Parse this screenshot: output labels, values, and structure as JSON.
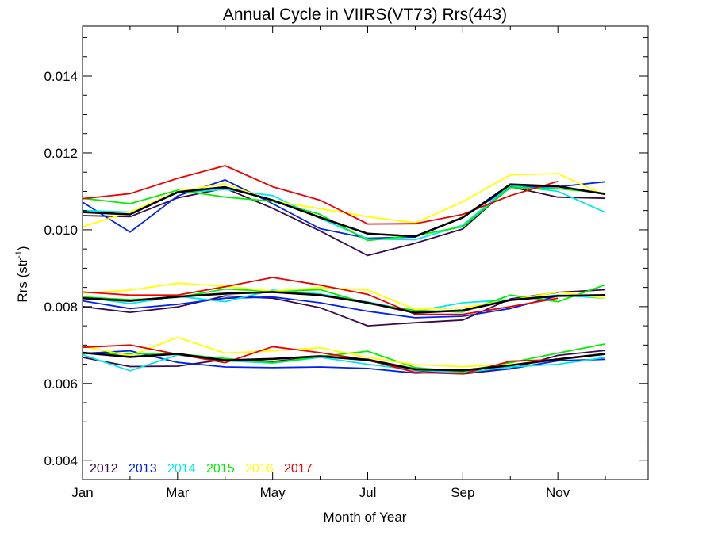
{
  "chart_data": {
    "type": "line",
    "title": "Annual Cycle in VIIRS(VT73) Rrs(443)",
    "xlabel": "Month of Year",
    "ylabel": "Rrs (str",
    "ylabel_sup": "-1",
    "ylabel_close": ")",
    "xlim": [
      1,
      12.9
    ],
    "ylim": [
      0.0035,
      0.0153
    ],
    "x_ticks": [
      {
        "value": 1,
        "label": "Jan"
      },
      {
        "value": 3,
        "label": "Mar"
      },
      {
        "value": 5,
        "label": "May"
      },
      {
        "value": 7,
        "label": "Jul"
      },
      {
        "value": 9,
        "label": "Sep"
      },
      {
        "value": 11,
        "label": "Nov"
      }
    ],
    "y_ticks": [
      {
        "value": 0.004,
        "label": "0.004"
      },
      {
        "value": 0.006,
        "label": "0.006"
      },
      {
        "value": 0.008,
        "label": "0.008"
      },
      {
        "value": 0.01,
        "label": "0.010"
      },
      {
        "value": 0.012,
        "label": "0.012"
      },
      {
        "value": 0.014,
        "label": "0.014"
      }
    ],
    "legend_position": "bottom-left",
    "series": [
      {
        "name": "2012",
        "color": "#3a0a4a",
        "lines": [
          {
            "x": [
              1,
              2,
              3,
              4,
              5,
              6,
              7,
              8,
              9,
              10,
              11,
              12
            ],
            "y": [
              0.01037,
              0.01034,
              0.01083,
              0.01108,
              0.01056,
              0.00997,
              0.00933,
              0.00965,
              0.01002,
              0.01112,
              0.01085,
              0.01082
            ]
          },
          {
            "x": [
              1,
              2,
              3,
              4,
              5,
              6,
              7,
              8,
              9,
              10,
              11,
              12
            ],
            "y": [
              0.008,
              0.00785,
              0.00799,
              0.00828,
              0.00822,
              0.00797,
              0.0075,
              0.00758,
              0.00765,
              0.0082,
              0.00837,
              0.00844
            ]
          },
          {
            "x": [
              1,
              2,
              3,
              4,
              5,
              6,
              7,
              8,
              9,
              10,
              11,
              12
            ],
            "y": [
              0.00668,
              0.00644,
              0.00645,
              0.00663,
              0.00657,
              0.0067,
              0.0066,
              0.00634,
              0.00625,
              0.00638,
              0.00673,
              0.00686
            ]
          }
        ]
      },
      {
        "name": "2013",
        "color": "#0022ee",
        "lines": [
          {
            "x": [
              1,
              2,
              3,
              4,
              5,
              6,
              7,
              8,
              9,
              10,
              11,
              12
            ],
            "y": [
              0.01072,
              0.00994,
              0.01088,
              0.0113,
              0.01068,
              0.01003,
              0.00978,
              0.00981,
              0.01032,
              0.01112,
              0.01112,
              0.01125
            ]
          },
          {
            "x": [
              1,
              2,
              3,
              4,
              5,
              6,
              7,
              8,
              9,
              10,
              11,
              12
            ],
            "y": [
              0.00815,
              0.00795,
              0.00806,
              0.00822,
              0.00825,
              0.0081,
              0.00788,
              0.00771,
              0.00775,
              0.00795,
              0.00828,
              0.0083
            ]
          },
          {
            "x": [
              1,
              2,
              3,
              4,
              5,
              6,
              7,
              8,
              9,
              10,
              11,
              12
            ],
            "y": [
              0.00678,
              0.00685,
              0.00655,
              0.00643,
              0.00641,
              0.00643,
              0.00639,
              0.00627,
              0.0063,
              0.00638,
              0.00659,
              0.00663
            ]
          }
        ]
      },
      {
        "name": "2014",
        "color": "#00e8e8",
        "lines": [
          {
            "x": [
              1,
              2,
              3,
              4,
              5,
              6,
              7,
              8,
              9,
              10,
              11,
              12
            ],
            "y": [
              0.0105,
              0.01046,
              0.01096,
              0.01105,
              0.01089,
              0.0103,
              0.00976,
              0.00974,
              0.01012,
              0.01115,
              0.011,
              0.01045
            ]
          },
          {
            "x": [
              1,
              2,
              3,
              4,
              5,
              6,
              7,
              8,
              9,
              10,
              11,
              12
            ],
            "y": [
              0.00825,
              0.00808,
              0.00827,
              0.00813,
              0.00843,
              0.00833,
              0.00812,
              0.00788,
              0.0081,
              0.00818,
              0.0083,
              0.00822
            ]
          },
          {
            "x": [
              1,
              2,
              3,
              4,
              5,
              6,
              7,
              8,
              9,
              10,
              11,
              12
            ],
            "y": [
              0.00675,
              0.00633,
              0.00674,
              0.00659,
              0.00653,
              0.00668,
              0.0065,
              0.00635,
              0.00628,
              0.00643,
              0.0065,
              0.00668
            ]
          }
        ]
      },
      {
        "name": "2015",
        "color": "#00ee00",
        "lines": [
          {
            "x": [
              1,
              2,
              3,
              4,
              5,
              6,
              7,
              8,
              9,
              10,
              11,
              12
            ],
            "y": [
              0.01082,
              0.01068,
              0.01103,
              0.01085,
              0.01074,
              0.0104,
              0.00972,
              0.00985,
              0.01008,
              0.0111,
              0.01107,
              0.01095
            ]
          },
          {
            "x": [
              1,
              2,
              3,
              4,
              5,
              6,
              7,
              8,
              9,
              10,
              11,
              12
            ],
            "y": [
              0.00825,
              0.00818,
              0.00824,
              0.00846,
              0.0084,
              0.00844,
              0.00808,
              0.0079,
              0.00786,
              0.0083,
              0.00813,
              0.00857
            ]
          },
          {
            "x": [
              1,
              2,
              3,
              4,
              5,
              6,
              7,
              8,
              9,
              10,
              11,
              12
            ],
            "y": [
              0.00678,
              0.00677,
              0.00677,
              0.00665,
              0.00654,
              0.0067,
              0.00684,
              0.00641,
              0.00631,
              0.00654,
              0.00679,
              0.00703
            ]
          }
        ]
      },
      {
        "name": "2016",
        "color": "#ffff00",
        "lines": [
          {
            "x": [
              1,
              2,
              3,
              4,
              5,
              6,
              7,
              8,
              9,
              10,
              11,
              12
            ],
            "y": [
              0.01008,
              0.01046,
              0.011,
              0.0112,
              0.01075,
              0.01055,
              0.01034,
              0.01018,
              0.01073,
              0.01143,
              0.01146,
              0.0109
            ]
          },
          {
            "x": [
              1,
              2,
              3,
              4,
              5,
              6,
              7,
              8,
              9,
              10,
              11,
              12
            ],
            "y": [
              0.00835,
              0.00843,
              0.00861,
              0.00853,
              0.0084,
              0.0085,
              0.00843,
              0.00793,
              0.00797,
              0.00817,
              0.00838,
              0.00822
            ]
          },
          {
            "x": [
              1,
              2,
              3,
              4,
              5,
              6,
              7,
              8,
              9,
              10,
              11,
              12
            ],
            "y": [
              0.00697,
              0.00672,
              0.0072,
              0.00679,
              0.00685,
              0.00693,
              0.00668,
              0.00649,
              0.00644,
              0.00649,
              0.00663,
              0.00678
            ]
          }
        ]
      },
      {
        "name": "2017",
        "color": "#ee0000",
        "lines": [
          {
            "x": [
              1,
              2,
              3,
              4,
              5,
              6,
              7,
              8,
              9,
              10,
              11
            ],
            "y": [
              0.01081,
              0.01094,
              0.01134,
              0.01167,
              0.01112,
              0.01077,
              0.01015,
              0.01016,
              0.0104,
              0.01089,
              0.01126
            ]
          },
          {
            "x": [
              1,
              2,
              3,
              4,
              5,
              6,
              7,
              8,
              9,
              10,
              11
            ],
            "y": [
              0.00838,
              0.0083,
              0.0083,
              0.00852,
              0.00876,
              0.00856,
              0.00832,
              0.0078,
              0.0078,
              0.008,
              0.00822
            ]
          },
          {
            "x": [
              1,
              2,
              3,
              4,
              5,
              6,
              7,
              8,
              9,
              10,
              11
            ],
            "y": [
              0.00694,
              0.007,
              0.00676,
              0.00654,
              0.00696,
              0.0068,
              0.00661,
              0.00629,
              0.00625,
              0.00658,
              0.00662
            ]
          }
        ]
      },
      {
        "name": "",
        "color": "#000000",
        "width": 2.6,
        "lines": [
          {
            "x": [
              1,
              2,
              3,
              4,
              5,
              6,
              7,
              8,
              9,
              10,
              11,
              12
            ],
            "y": [
              0.01046,
              0.0104,
              0.01098,
              0.01111,
              0.01077,
              0.01032,
              0.0099,
              0.00983,
              0.01032,
              0.01118,
              0.01113,
              0.01093
            ]
          },
          {
            "x": [
              1,
              2,
              3,
              4,
              5,
              6,
              7,
              8,
              9,
              10,
              11,
              12
            ],
            "y": [
              0.00822,
              0.00815,
              0.00826,
              0.00834,
              0.00838,
              0.0083,
              0.0081,
              0.00784,
              0.0079,
              0.00817,
              0.00828,
              0.0083
            ]
          },
          {
            "x": [
              1,
              2,
              3,
              4,
              5,
              6,
              7,
              8,
              9,
              10,
              11,
              12
            ],
            "y": [
              0.0068,
              0.00669,
              0.00677,
              0.0066,
              0.00664,
              0.00671,
              0.00662,
              0.00637,
              0.00634,
              0.00647,
              0.00663,
              0.00677
            ]
          }
        ]
      }
    ]
  }
}
